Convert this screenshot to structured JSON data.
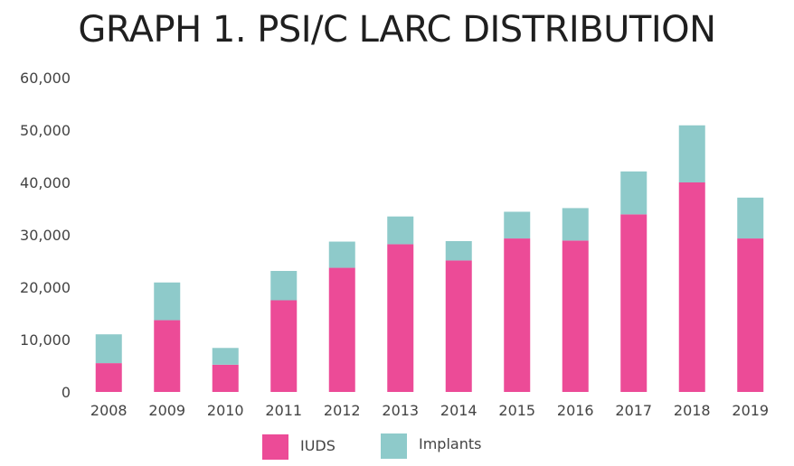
{
  "chart_data": {
    "type": "bar",
    "stacked": true,
    "title": "GRAPH 1. PSI/C LARC DISTRIBUTION",
    "xlabel": "",
    "ylabel": "",
    "ylim": [
      0,
      60000
    ],
    "yticks": [
      0,
      10000,
      20000,
      30000,
      40000,
      50000,
      60000
    ],
    "ytick_labels": [
      "0",
      "10,000",
      "20,000",
      "30,000",
      "40,000",
      "50,000",
      "60,000"
    ],
    "categories": [
      "2008",
      "2009",
      "2010",
      "2011",
      "2012",
      "2013",
      "2014",
      "2015",
      "2016",
      "2017",
      "2018",
      "2019"
    ],
    "series": [
      {
        "name": "IUDS",
        "color": "#ec4b97",
        "values": [
          5500,
          13700,
          5200,
          17500,
          23700,
          28200,
          25100,
          29300,
          28900,
          33900,
          40000,
          29300
        ]
      },
      {
        "name": "Implants",
        "color": "#8ecaca",
        "values": [
          5500,
          7200,
          3200,
          5600,
          5000,
          5300,
          3700,
          5100,
          6200,
          8200,
          10900,
          7800
        ]
      }
    ],
    "grid": false,
    "legend": "bottom-center"
  }
}
